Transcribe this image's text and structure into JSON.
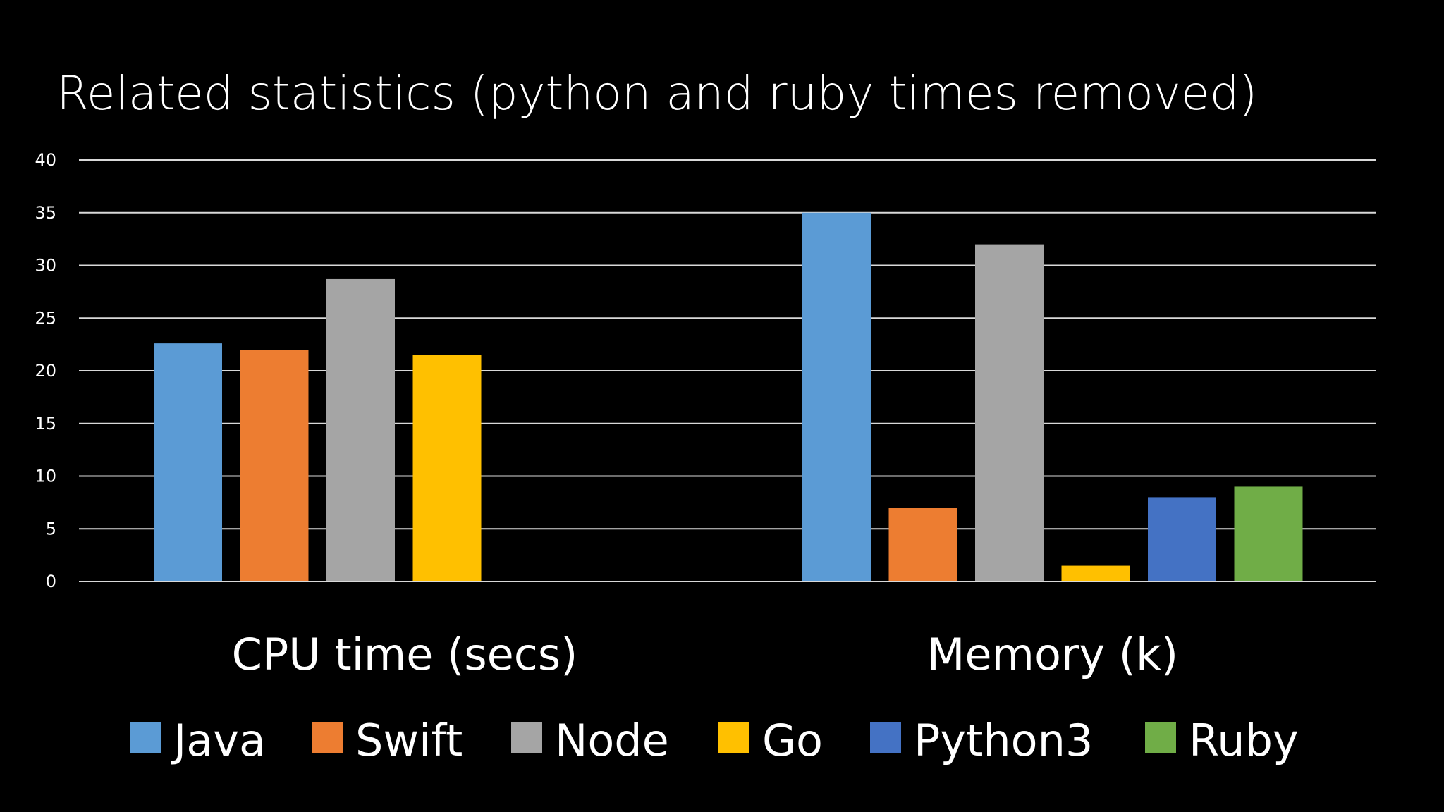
{
  "chart_data": {
    "type": "bar",
    "title": "Related statistics (python and ruby times removed)",
    "xlabel": "",
    "ylabel": "",
    "ylim": [
      0,
      40
    ],
    "yticks": [
      0,
      5,
      10,
      15,
      20,
      25,
      30,
      35,
      40
    ],
    "grid": true,
    "legend_position": "bottom",
    "categories": [
      "CPU time (secs)",
      "Memory (k)"
    ],
    "series": [
      {
        "name": "Java",
        "color": "#5b9bd5",
        "values": [
          22.6,
          35
        ]
      },
      {
        "name": "Swift",
        "color": "#ed7d31",
        "values": [
          22,
          7
        ]
      },
      {
        "name": "Node",
        "color": "#a5a5a5",
        "values": [
          28.7,
          32
        ]
      },
      {
        "name": "Go",
        "color": "#ffc000",
        "values": [
          21.5,
          1.5
        ]
      },
      {
        "name": "Python3",
        "color": "#4472c4",
        "values": [
          null,
          8
        ]
      },
      {
        "name": "Ruby",
        "color": "#70ad47",
        "values": [
          null,
          9
        ]
      }
    ]
  },
  "colors": {
    "background": "#000000",
    "text": "#ffffff",
    "gridline": "#d9d9d9"
  }
}
